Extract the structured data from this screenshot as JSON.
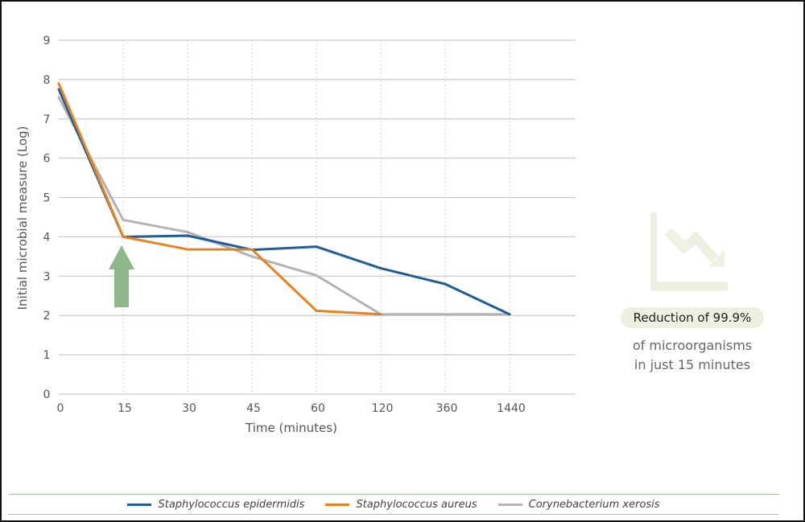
{
  "chart_data": {
    "type": "line",
    "x": [
      "0",
      "15",
      "30",
      "45",
      "60",
      "120",
      "360",
      "1440"
    ],
    "xlabel": "Time (minutes)",
    "ylabel": "Initial microbial measure (Log)",
    "yticks": [
      "0",
      "1",
      "2",
      "3",
      "4",
      "5",
      "6",
      "7",
      "8",
      "9"
    ],
    "ylim": [
      0,
      9
    ],
    "grid": {
      "horizontal": "solid",
      "vertical": "dotted"
    },
    "legend_position": "bottom",
    "series": [
      {
        "name": "Staphylococcus epidermidis",
        "color": "#1f5d99",
        "values": [
          7.75,
          4.0,
          4.03,
          3.67,
          3.75,
          3.2,
          2.8,
          2.03
        ]
      },
      {
        "name": "Staphylococcus aureus",
        "color": "#e8821e",
        "values": [
          7.9,
          4.0,
          3.68,
          3.68,
          2.12,
          2.03,
          null,
          null
        ]
      },
      {
        "name": "Corynebacterium xerosis",
        "color": "#b3b3b3",
        "values": [
          7.55,
          4.43,
          4.12,
          3.5,
          3.02,
          2.03,
          2.03,
          2.03
        ]
      }
    ],
    "annotation": {
      "type": "arrow",
      "at_x": "15",
      "color": "#8fb88a"
    }
  },
  "callout": {
    "icon": "decline-chart-icon",
    "icon_color": "#eef0e2",
    "highlight": "Reduction of 99.9%",
    "line1": "of microorganisms",
    "line2": "in just 15 minutes"
  }
}
